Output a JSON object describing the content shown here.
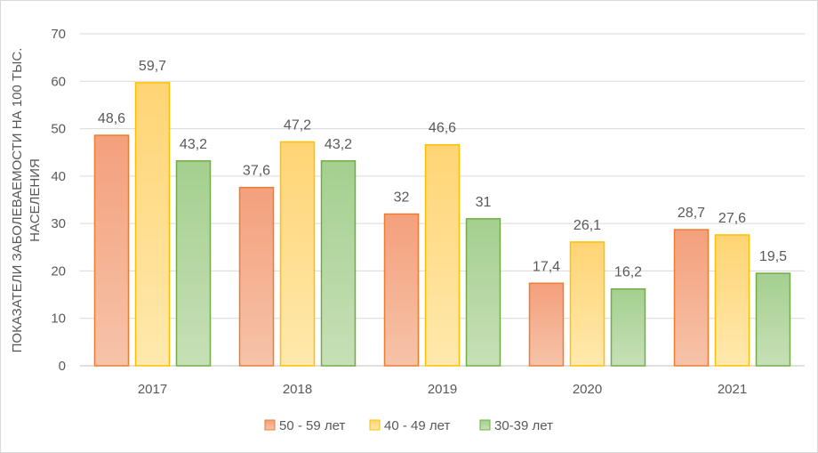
{
  "chart_data": {
    "type": "bar",
    "categories": [
      "2017",
      "2018",
      "2019",
      "2020",
      "2021"
    ],
    "series": [
      {
        "name": "50 - 59 лет",
        "values": [
          48.6,
          37.6,
          32,
          17.4,
          28.7
        ],
        "labels": [
          "48,6",
          "37,6",
          "32",
          "17,4",
          "28,7"
        ]
      },
      {
        "name": "40 - 49 лет",
        "values": [
          59.7,
          47.2,
          46.6,
          26.1,
          27.6
        ],
        "labels": [
          "59,7",
          "47,2",
          "46,6",
          "26,1",
          "27,6"
        ]
      },
      {
        "name": "30-39 лет",
        "values": [
          43.2,
          43.2,
          31,
          16.2,
          19.5
        ],
        "labels": [
          "43,2",
          "43,2",
          "31",
          "16,2",
          "19,5"
        ]
      }
    ],
    "ylabel_lines": [
      "ПОКАЗАТЕЛИ ЗАБОЛЕВАЕМОСТИ НА 100 ТЫС.",
      "НАСЕЛЕНИЯ"
    ],
    "ylim": [
      0,
      70
    ],
    "yticks": [
      0,
      10,
      20,
      30,
      40,
      50,
      60,
      70
    ],
    "grid": true,
    "legend": "bottom-center",
    "colors": [
      {
        "top": "#f6c3a9",
        "bottom": "#f4a07c",
        "stroke": "#ed7d31"
      },
      {
        "top": "#ffe9ad",
        "bottom": "#ffd474",
        "stroke": "#ffc000"
      },
      {
        "top": "#c7e0b7",
        "bottom": "#a4cf8f",
        "stroke": "#70ad47"
      }
    ]
  }
}
